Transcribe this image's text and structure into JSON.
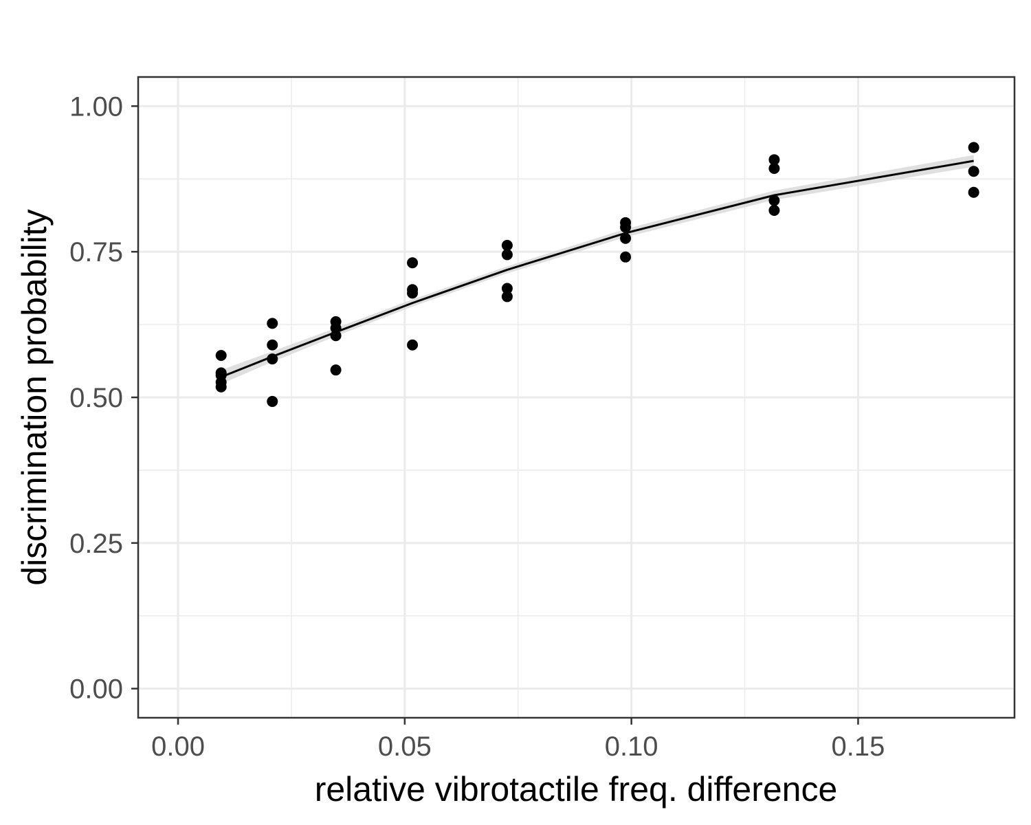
{
  "chart_data": {
    "type": "scatter",
    "title": "",
    "xlabel": "relative vibrotactile freq. difference",
    "ylabel": "discrimination probability",
    "xlim": [
      -0.0088,
      0.1845
    ],
    "ylim": [
      -0.05,
      1.05
    ],
    "x_ticks": [
      0.0,
      0.05,
      0.1,
      0.15
    ],
    "x_tick_labels": [
      "0.00",
      "0.05",
      "0.10",
      "0.15"
    ],
    "y_ticks": [
      0.0,
      0.25,
      0.5,
      0.75,
      1.0
    ],
    "y_tick_labels": [
      "0.00",
      "0.25",
      "0.50",
      "0.75",
      "1.00"
    ],
    "grid": true,
    "legend": "none",
    "colors": {
      "points": "#000000",
      "fit_line": "#000000",
      "confidence_band": "#d9d9d9",
      "grid": "#ebebeb",
      "panel_border": "#333333",
      "tick_label": "#4d4d4d"
    },
    "points": [
      {
        "x": 0.0095,
        "y": 0.572
      },
      {
        "x": 0.0095,
        "y": 0.542
      },
      {
        "x": 0.0095,
        "y": 0.538
      },
      {
        "x": 0.0095,
        "y": 0.526
      },
      {
        "x": 0.0095,
        "y": 0.518
      },
      {
        "x": 0.0208,
        "y": 0.627
      },
      {
        "x": 0.0208,
        "y": 0.59
      },
      {
        "x": 0.0208,
        "y": 0.566
      },
      {
        "x": 0.0208,
        "y": 0.493
      },
      {
        "x": 0.0348,
        "y": 0.63
      },
      {
        "x": 0.0348,
        "y": 0.619
      },
      {
        "x": 0.0348,
        "y": 0.606
      },
      {
        "x": 0.0348,
        "y": 0.547
      },
      {
        "x": 0.0517,
        "y": 0.731
      },
      {
        "x": 0.0517,
        "y": 0.685
      },
      {
        "x": 0.0517,
        "y": 0.679
      },
      {
        "x": 0.0517,
        "y": 0.59
      },
      {
        "x": 0.0726,
        "y": 0.761
      },
      {
        "x": 0.0726,
        "y": 0.745
      },
      {
        "x": 0.0726,
        "y": 0.687
      },
      {
        "x": 0.0726,
        "y": 0.673
      },
      {
        "x": 0.0987,
        "y": 0.8
      },
      {
        "x": 0.0987,
        "y": 0.792
      },
      {
        "x": 0.0987,
        "y": 0.773
      },
      {
        "x": 0.0987,
        "y": 0.741
      },
      {
        "x": 0.1315,
        "y": 0.908
      },
      {
        "x": 0.1315,
        "y": 0.893
      },
      {
        "x": 0.1315,
        "y": 0.838
      },
      {
        "x": 0.1315,
        "y": 0.821
      },
      {
        "x": 0.1755,
        "y": 0.929
      },
      {
        "x": 0.1755,
        "y": 0.888
      },
      {
        "x": 0.1755,
        "y": 0.852
      }
    ],
    "fit_line": [
      {
        "x": 0.0095,
        "y": 0.535
      },
      {
        "x": 0.0208,
        "y": 0.57
      },
      {
        "x": 0.0348,
        "y": 0.612
      },
      {
        "x": 0.0517,
        "y": 0.662
      },
      {
        "x": 0.0726,
        "y": 0.719
      },
      {
        "x": 0.0987,
        "y": 0.782
      },
      {
        "x": 0.1315,
        "y": 0.847
      },
      {
        "x": 0.1755,
        "y": 0.906
      }
    ],
    "confidence_band": [
      {
        "x": 0.0095,
        "lower": 0.523,
        "upper": 0.547
      },
      {
        "x": 0.0208,
        "lower": 0.561,
        "upper": 0.579
      },
      {
        "x": 0.0348,
        "lower": 0.605,
        "upper": 0.619
      },
      {
        "x": 0.0517,
        "lower": 0.656,
        "upper": 0.668
      },
      {
        "x": 0.0726,
        "lower": 0.713,
        "upper": 0.725
      },
      {
        "x": 0.0987,
        "lower": 0.775,
        "upper": 0.789
      },
      {
        "x": 0.1315,
        "lower": 0.839,
        "upper": 0.855
      },
      {
        "x": 0.1755,
        "lower": 0.896,
        "upper": 0.916
      }
    ]
  }
}
